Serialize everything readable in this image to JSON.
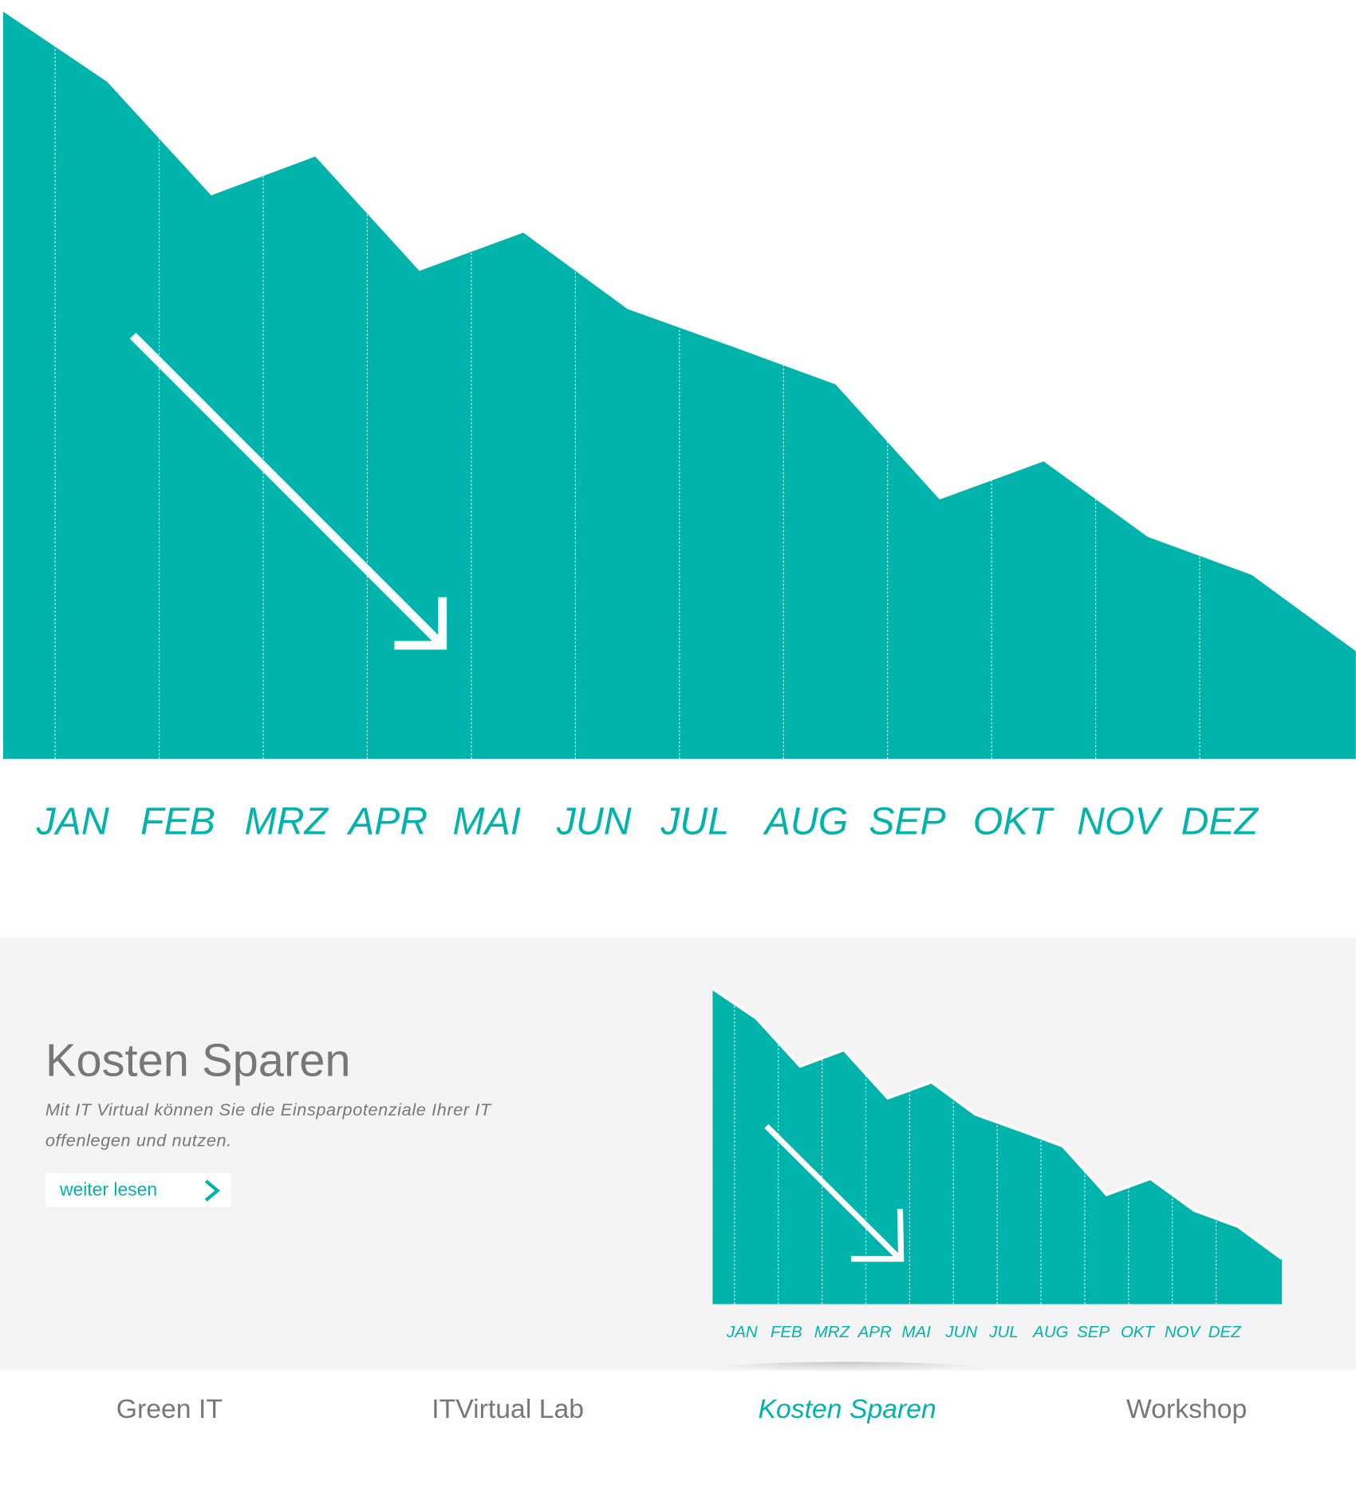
{
  "chart_data": [
    {
      "type": "area",
      "color": "#00b4ab",
      "grid": true,
      "x": [
        0,
        1,
        2,
        3,
        4,
        5,
        6,
        7,
        8,
        9,
        10,
        11,
        12,
        13
      ],
      "values": [
        100,
        90.6,
        75.4,
        80.6,
        65.3,
        70.4,
        60.2,
        55.2,
        50.1,
        34.7,
        39.8,
        29.7,
        24.6,
        14.4
      ],
      "xlim": [
        0,
        13
      ],
      "ylim": [
        0,
        100
      ],
      "xticks": [
        {
          "value": 0.5,
          "label": "JAN"
        },
        {
          "value": 1.5,
          "label": "FEB"
        },
        {
          "value": 2.5,
          "label": "MRZ"
        },
        {
          "value": 3.5,
          "label": "APR"
        },
        {
          "value": 4.5,
          "label": "MAI"
        },
        {
          "value": 5.5,
          "label": "JUN"
        },
        {
          "value": 6.5,
          "label": "JUL"
        },
        {
          "value": 7.5,
          "label": "AUG"
        },
        {
          "value": 8.5,
          "label": "SEP"
        },
        {
          "value": 9.5,
          "label": "OKT"
        },
        {
          "value": 10.5,
          "label": "NOV"
        },
        {
          "value": 11.5,
          "label": "DEZ"
        }
      ]
    },
    {
      "type": "area",
      "color": "#00b4ab",
      "grid": true,
      "outline_color": "#ffffff",
      "x": [
        0,
        1,
        2,
        3,
        4,
        5,
        6,
        7,
        8,
        9,
        10,
        11,
        12,
        13
      ],
      "values": [
        100,
        90.6,
        75.4,
        80.6,
        65.3,
        70.4,
        60.2,
        55.2,
        50.1,
        34.7,
        39.8,
        29.7,
        24.6,
        14.4
      ],
      "xlim": [
        0,
        13
      ],
      "ylim": [
        0,
        100
      ],
      "xticks": [
        {
          "value": 0.5,
          "label": "JAN"
        },
        {
          "value": 1.5,
          "label": "FEB"
        },
        {
          "value": 2.5,
          "label": "MRZ"
        },
        {
          "value": 3.5,
          "label": "APR"
        },
        {
          "value": 4.5,
          "label": "MAI"
        },
        {
          "value": 5.5,
          "label": "JUN"
        },
        {
          "value": 6.5,
          "label": "JUL"
        },
        {
          "value": 7.5,
          "label": "AUG"
        },
        {
          "value": 8.5,
          "label": "SEP"
        },
        {
          "value": 9.5,
          "label": "OKT"
        },
        {
          "value": 10.5,
          "label": "NOV"
        },
        {
          "value": 11.5,
          "label": "DEZ"
        }
      ]
    }
  ],
  "feature": {
    "title": "Kosten Sparen",
    "text": [
      "Mit IT Virtual können Sie die Einsparpotenziale Ihrer IT",
      "offenlegen und nutzen."
    ],
    "button": "weiter lesen"
  },
  "nav": {
    "items": [
      "Green IT",
      "ITVirtual Lab",
      "Kosten Sparen",
      "Workshop"
    ],
    "active": 2
  }
}
